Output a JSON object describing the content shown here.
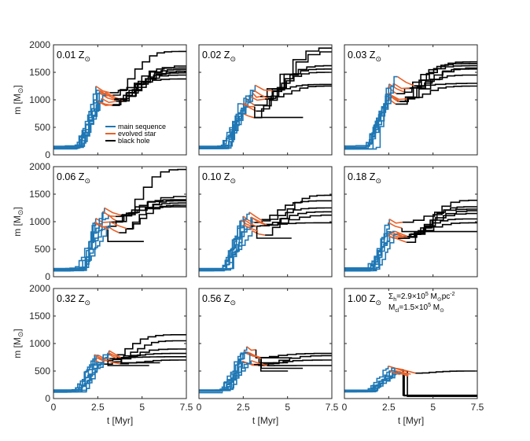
{
  "figure": {
    "y_label": "m [M",
    "y_label_sub": "⊙",
    "y_label_close": "]",
    "x_label": "t [Myr]",
    "legend": {
      "main_sequence": "main sequence",
      "evolved_star": "evolved star",
      "black_hole": "black hole"
    },
    "colors": {
      "main_sequence": "#1f77b4",
      "evolved_star": "#e8622a",
      "black_hole": "#000000"
    },
    "annotation": {
      "line1_a": "Σ",
      "line1_sub": "h",
      "line1_b": "=2.9×10",
      "line1_sup": "5",
      "line1_c": " M",
      "line1_sub2": "⊙",
      "line1_d": "pc",
      "line1_sup2": "-2",
      "line2_a": "M",
      "line2_sub": "cl",
      "line2_b": "=1.5×10",
      "line2_sup": "5",
      "line2_c": " M",
      "line2_sub2": "⊙"
    }
  },
  "chart_data": [
    {
      "type": "line",
      "title": "0.01 Z",
      "title_sub": "⊙",
      "xlim": [
        0,
        7.5
      ],
      "ylim": [
        0,
        2000
      ],
      "xticks": [
        "0",
        "2.5",
        "5",
        "7.5"
      ],
      "yticks": [
        "0",
        "500",
        "1000",
        "1500",
        "2000"
      ],
      "final_masses_black_hole": [
        1880,
        1620,
        1580,
        1550,
        1520,
        1490,
        1450,
        1380
      ],
      "ms_peak": 1150,
      "ms_end_time": 3.0
    },
    {
      "type": "line",
      "title": "0.02 Z",
      "title_sub": "⊙",
      "xlim": [
        0,
        7.5
      ],
      "ylim": [
        0,
        2000
      ],
      "xticks": [
        "0",
        "2.5",
        "5",
        "7.5"
      ],
      "yticks": [
        "0",
        "500",
        "1000",
        "1500",
        "2000"
      ],
      "final_masses_black_hole": [
        1950,
        1880,
        1620,
        1560,
        1500,
        1280,
        1250,
        680
      ],
      "ms_peak": 1150,
      "ms_end_time": 3.0
    },
    {
      "type": "line",
      "title": "0.03 Z",
      "title_sub": "⊙",
      "xlim": [
        0,
        7.5
      ],
      "ylim": [
        0,
        2000
      ],
      "xticks": [
        "0",
        "2.5",
        "5",
        "7.5"
      ],
      "yticks": [
        "0",
        "500",
        "1000",
        "1500",
        "2000"
      ],
      "final_masses_black_hole": [
        1690,
        1660,
        1620,
        1580,
        1560,
        1450,
        1300,
        1250
      ],
      "ms_peak": 1350,
      "ms_end_time": 3.0
    },
    {
      "type": "line",
      "title": "0.06 Z",
      "title_sub": "⊙",
      "xlim": [
        0,
        7.5
      ],
      "ylim": [
        0,
        2000
      ],
      "xticks": [
        "0",
        "2.5",
        "5",
        "7.5"
      ],
      "yticks": [
        "0",
        "500",
        "1000",
        "1500",
        "2000"
      ],
      "final_masses_black_hole": [
        1950,
        1460,
        1400,
        1380,
        1340,
        1300,
        1270,
        640
      ],
      "ms_peak": 1200,
      "ms_end_time": 3.0
    },
    {
      "type": "line",
      "title": "0.10 Z",
      "title_sub": "⊙",
      "xlim": [
        0,
        7.5
      ],
      "ylim": [
        0,
        2000
      ],
      "xticks": [
        "0",
        "2.5",
        "5",
        "7.5"
      ],
      "yticks": [
        "0",
        "500",
        "1000",
        "1500",
        "2000"
      ],
      "final_masses_black_hole": [
        1480,
        1380,
        1250,
        1180,
        1120,
        980,
        700
      ],
      "ms_peak": 1150,
      "ms_end_time": 3.0
    },
    {
      "type": "line",
      "title": "0.18 Z",
      "title_sub": "⊙",
      "xlim": [
        0,
        7.5
      ],
      "ylim": [
        0,
        2000
      ],
      "xticks": [
        "0",
        "2.5",
        "5",
        "7.5"
      ],
      "yticks": [
        "0",
        "500",
        "1000",
        "1500",
        "2000"
      ],
      "final_masses_black_hole": [
        1390,
        1270,
        1230,
        1200,
        1150,
        1050,
        980,
        820
      ],
      "ms_peak": 1000,
      "ms_end_time": 3.0
    },
    {
      "type": "line",
      "title": "0.32 Z",
      "title_sub": "⊙",
      "xlim": [
        0,
        7.5
      ],
      "ylim": [
        0,
        2000
      ],
      "xticks": [
        "0",
        "2.5",
        "5",
        "7.5"
      ],
      "yticks": [
        "0",
        "500",
        "1000",
        "1500",
        "2000"
      ],
      "final_masses_black_hole": [
        1160,
        1050,
        900,
        820,
        760,
        700,
        650,
        600
      ],
      "ms_peak": 950,
      "ms_end_time": 3.0
    },
    {
      "type": "line",
      "title": "0.56 Z",
      "title_sub": "⊙",
      "xlim": [
        0,
        7.5
      ],
      "ylim": [
        0,
        2000
      ],
      "xticks": [
        "0",
        "2.5",
        "5",
        "7.5"
      ],
      "yticks": [
        "0",
        "500",
        "1000",
        "1500",
        "2000"
      ],
      "final_masses_black_hole": [
        820,
        780,
        740,
        700,
        650,
        600,
        550,
        500
      ],
      "ms_peak": 900,
      "ms_end_time": 3.0
    },
    {
      "type": "line",
      "title": "1.00 Z",
      "title_sub": "⊙",
      "xlim": [
        0,
        7.5
      ],
      "ylim": [
        0,
        2000
      ],
      "xticks": [
        "0",
        "2.5",
        "5",
        "7.5"
      ],
      "yticks": [
        "0",
        "500",
        "1000",
        "1500",
        "2000"
      ],
      "final_masses_black_hole": [
        500,
        60,
        50,
        40
      ],
      "ms_peak": 580,
      "ms_end_time": 3.0
    }
  ]
}
